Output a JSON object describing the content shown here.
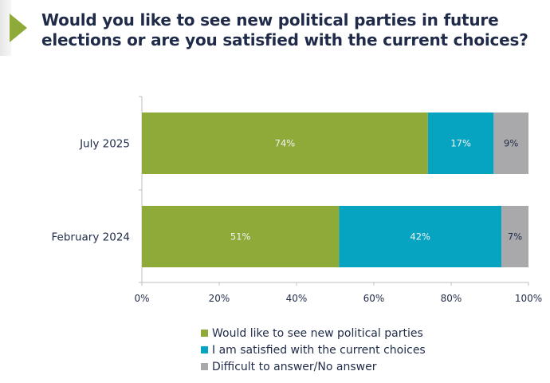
{
  "header": {
    "title_line1": "Would you like to see new political parties in future",
    "title_line2": "elections or are you satisfied with the current choices?",
    "icon": "triangle-arrow-icon"
  },
  "chart_data": {
    "type": "bar",
    "orientation": "horizontal",
    "stacked": true,
    "title": "Would you like to see new political parties in future elections or are you satisfied with the current choices?",
    "categories": [
      "July 2025",
      "February 2024"
    ],
    "series": [
      {
        "name": "Would like to see new political parties",
        "color": "#8eab3a",
        "label_color": "#f2f2f2",
        "values": [
          74,
          51
        ]
      },
      {
        "name": "I am satisfied with the current choices",
        "color": "#06a4c1",
        "label_color": "#f2f2f2",
        "values": [
          17,
          42
        ]
      },
      {
        "name": "Difficult to answer/No answer",
        "color": "#a9a9ab",
        "label_color": "#1f2b48",
        "values": [
          9,
          7
        ]
      }
    ],
    "value_suffix": "%",
    "xlim": [
      0,
      100
    ],
    "xticks": [
      "0%",
      "20%",
      "40%",
      "60%",
      "80%",
      "100%"
    ],
    "xlabel": "",
    "ylabel": "",
    "grid": false,
    "legend_position": "bottom"
  }
}
